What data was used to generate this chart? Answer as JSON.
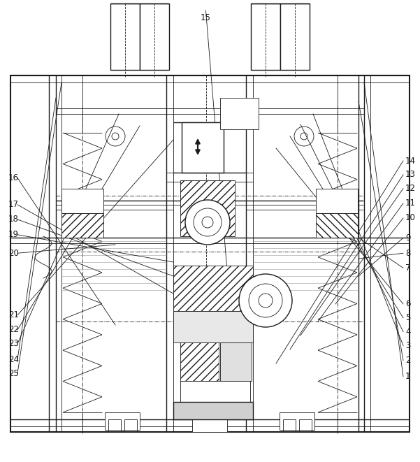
{
  "fig_width": 6.01,
  "fig_height": 6.61,
  "dpi": 100,
  "bg_color": "#ffffff",
  "lc": "#1a1a1a",
  "lc_gray": "#888888",
  "lc_light": "#bbbbbb",
  "labels_left": [
    {
      "num": "25",
      "xf": 0.02,
      "yf": 0.808
    },
    {
      "num": "24",
      "xf": 0.02,
      "yf": 0.778
    },
    {
      "num": "23",
      "xf": 0.02,
      "yf": 0.744
    },
    {
      "num": "22",
      "xf": 0.02,
      "yf": 0.714
    },
    {
      "num": "21",
      "xf": 0.02,
      "yf": 0.682
    },
    {
      "num": "20",
      "xf": 0.02,
      "yf": 0.548
    },
    {
      "num": "19",
      "xf": 0.02,
      "yf": 0.508
    },
    {
      "num": "18",
      "xf": 0.02,
      "yf": 0.475
    },
    {
      "num": "17",
      "xf": 0.02,
      "yf": 0.443
    },
    {
      "num": "16",
      "xf": 0.02,
      "yf": 0.385
    }
  ],
  "labels_right": [
    {
      "num": "1",
      "xf": 0.965,
      "yf": 0.815
    },
    {
      "num": "2",
      "xf": 0.965,
      "yf": 0.78
    },
    {
      "num": "3",
      "xf": 0.965,
      "yf": 0.748
    },
    {
      "num": "4",
      "xf": 0.965,
      "yf": 0.718
    },
    {
      "num": "5",
      "xf": 0.965,
      "yf": 0.688
    },
    {
      "num": "6",
      "xf": 0.965,
      "yf": 0.658
    },
    {
      "num": "7",
      "xf": 0.965,
      "yf": 0.58
    },
    {
      "num": "8",
      "xf": 0.965,
      "yf": 0.548
    },
    {
      "num": "9",
      "xf": 0.965,
      "yf": 0.515
    },
    {
      "num": "10",
      "xf": 0.965,
      "yf": 0.472
    },
    {
      "num": "11",
      "xf": 0.965,
      "yf": 0.44
    },
    {
      "num": "12",
      "xf": 0.965,
      "yf": 0.408
    },
    {
      "num": "13",
      "xf": 0.965,
      "yf": 0.378
    },
    {
      "num": "14",
      "xf": 0.965,
      "yf": 0.348
    }
  ],
  "label15": {
    "num": "15",
    "xf": 0.49,
    "yf": 0.038
  }
}
